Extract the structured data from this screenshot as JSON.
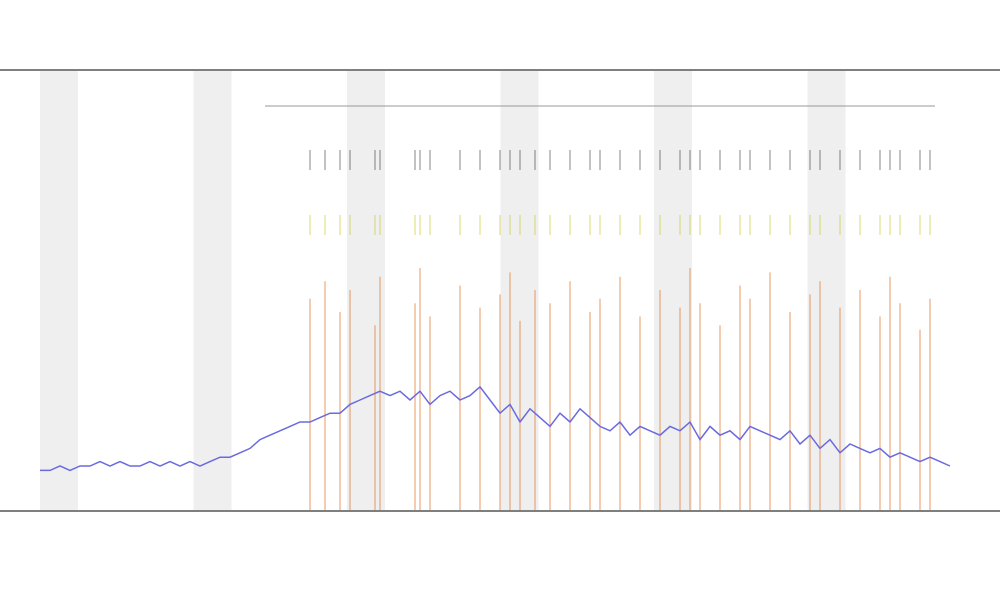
{
  "chart_data": {
    "type": "line",
    "x": [
      0,
      1,
      2,
      3,
      4,
      5,
      6,
      7,
      8,
      9,
      10,
      11,
      12,
      13,
      14,
      15,
      16,
      17,
      18,
      19,
      20,
      21,
      22,
      23,
      24,
      25,
      26,
      27,
      28,
      29,
      30,
      31,
      32,
      33,
      34,
      35,
      36,
      37,
      38,
      39,
      40,
      41,
      42,
      43,
      44,
      45,
      46,
      47,
      48,
      49,
      50,
      51,
      52,
      53,
      54,
      55,
      56,
      57,
      58,
      59,
      60,
      61,
      62,
      63,
      64,
      65,
      66,
      67,
      68,
      69,
      70,
      71,
      72,
      73,
      74,
      75,
      76,
      77,
      78,
      79,
      80,
      81,
      82,
      83,
      84,
      85,
      86,
      87,
      88,
      89,
      90,
      91
    ],
    "series": [
      {
        "color": "#6a6ae0",
        "values": [
          9,
          9,
          10,
          9,
          10,
          10,
          11,
          10,
          11,
          10,
          10,
          11,
          10,
          11,
          10,
          11,
          10,
          11,
          12,
          12,
          13,
          14,
          16,
          17,
          18,
          19,
          20,
          20,
          21,
          22,
          22,
          24,
          25,
          26,
          27,
          26,
          27,
          25,
          27,
          24,
          26,
          27,
          25,
          26,
          28,
          25,
          22,
          24,
          20,
          23,
          21,
          19,
          22,
          20,
          23,
          21,
          19,
          18,
          20,
          17,
          19,
          18,
          17,
          19,
          18,
          20,
          16,
          19,
          17,
          18,
          16,
          19,
          18,
          17,
          16,
          18,
          15,
          17,
          14,
          16,
          13,
          15,
          14,
          13,
          14,
          12,
          13,
          12,
          11,
          12,
          11,
          10
        ]
      }
    ],
    "events": {
      "color": "#e07020",
      "x": [
        27,
        28.5,
        30,
        31,
        33.5,
        34,
        37.5,
        38,
        39,
        42,
        44,
        46,
        47,
        48,
        49.5,
        51,
        53,
        55,
        56,
        58,
        60,
        62,
        64,
        65,
        66,
        68,
        70,
        71,
        73,
        75,
        77,
        78,
        80,
        82,
        84,
        85,
        86,
        88,
        89
      ],
      "values": [
        48,
        52,
        45,
        50,
        42,
        53,
        47,
        55,
        44,
        51,
        46,
        49,
        54,
        43,
        50,
        47,
        52,
        45,
        48,
        53,
        44,
        50,
        46,
        55,
        47,
        42,
        51,
        48,
        54,
        45,
        49,
        52,
        46,
        50,
        44,
        53,
        47,
        41,
        48
      ]
    },
    "xlim": [
      0,
      92
    ],
    "ylim": [
      0,
      100
    ]
  }
}
